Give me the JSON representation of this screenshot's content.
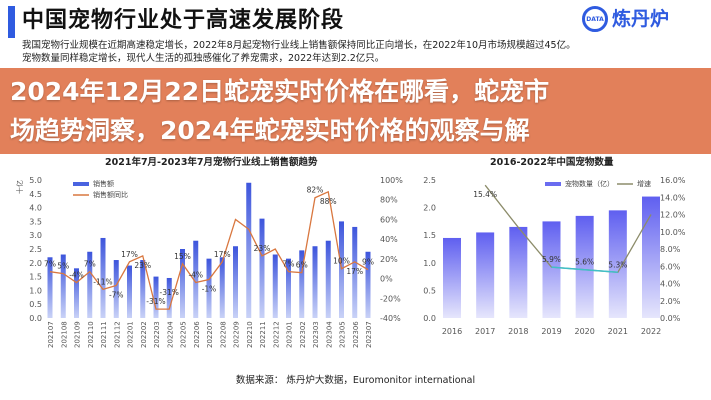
{
  "slide": {
    "title": "中国宠物行业处于高速发展阶段",
    "logo_text": "炼丹炉",
    "logo_mark": "DATA",
    "description": [
      "我国宠物行业规模在近期高速稳定增长，2022年8月起宠物行业线上销售额保持同比正向增长，在2022年10月市场规模超过45亿。",
      "宠物数量同样稳定增长，现代人生活的孤独感催化了养宠需求，2022年达到2.2亿只。"
    ],
    "source": "数据来源： 炼丹炉大数据，Euromonitor international"
  },
  "overlay": {
    "lines": [
      "2024年12月22日蛇宠实时价格在哪看，蛇宠市",
      "场趋势洞察，2024年蛇宠实时价格的观察与解"
    ],
    "color": "#e0764e"
  },
  "chart_data": [
    {
      "type": "bar+line",
      "title": "2021年7月-2023年7月宠物行业线上销售额趋势",
      "ylabel": "十亿",
      "legend": [
        "销售额",
        "销售额同比"
      ],
      "legend_position": "top-left",
      "categories": [
        "202107",
        "202108",
        "202109",
        "202110",
        "202111",
        "202112",
        "202201",
        "202202",
        "202203",
        "202204",
        "202205",
        "202206",
        "202207",
        "202208",
        "202209",
        "202210",
        "202211",
        "202212",
        "202301",
        "202302",
        "202303",
        "202304",
        "202305",
        "202306",
        "202307"
      ],
      "series": [
        {
          "name": "销售额",
          "axis": "left",
          "color": "#4a63e0",
          "values": [
            2.2,
            2.3,
            1.8,
            2.4,
            2.9,
            2.1,
            1.9,
            2.1,
            1.5,
            1.45,
            2.5,
            2.8,
            2.15,
            2.2,
            2.6,
            4.9,
            3.6,
            2.3,
            2.15,
            2.45,
            2.6,
            2.8,
            3.5,
            3.3,
            2.4
          ]
        },
        {
          "name": "销售额同比",
          "axis": "right",
          "color": "#d9773f",
          "values": [
            7,
            5,
            -4,
            7,
            -11,
            -7,
            17,
            23,
            -31,
            -31,
            15,
            -4,
            -1,
            17,
            60,
            50,
            23,
            30,
            7,
            6,
            82,
            88,
            10,
            17,
            9
          ],
          "labels": [
            "7%",
            "5%",
            "-4%",
            "7%",
            "-11%",
            "-7%",
            "17%",
            "23%",
            "-31%",
            "-31%",
            "15%",
            "-4%",
            "-1%",
            "17%",
            "",
            "",
            "23%",
            "",
            "7%",
            "6%",
            "82%",
            "88%",
            "10%",
            "17%",
            "9%"
          ]
        }
      ],
      "ylim": [
        0,
        5
      ],
      "yticks": [
        "0.0",
        "0.5",
        "1.0",
        "1.5",
        "2.0",
        "2.5",
        "3.0",
        "3.5",
        "4.0",
        "4.5",
        "5.0"
      ],
      "y2lim": [
        -40,
        100
      ],
      "y2ticks": [
        "-40%",
        "-20%",
        "0%",
        "20%",
        "40%",
        "60%",
        "80%",
        "100%"
      ]
    },
    {
      "type": "bar+line",
      "title": "2016-2022年中国宠物数量",
      "legend": [
        "宠物数量（亿）",
        "增速"
      ],
      "legend_position": "top-right",
      "categories": [
        "2016",
        "2017",
        "2018",
        "2019",
        "2020",
        "2021",
        "2022"
      ],
      "series": [
        {
          "name": "宠物数量（亿）",
          "axis": "left",
          "color": "#6a6cf0",
          "values": [
            1.45,
            1.55,
            1.65,
            1.75,
            1.85,
            1.95,
            2.2
          ]
        },
        {
          "name": "增速",
          "axis": "right",
          "color": "#8c8c6a",
          "highlight_color": "#40c0c8",
          "values": [
            null,
            15.4,
            10.5,
            5.9,
            5.6,
            5.3,
            12.0
          ],
          "labels": [
            "",
            "15.4%",
            "",
            "5.9%",
            "5.6%",
            "5.3%",
            ""
          ]
        }
      ],
      "ylim": [
        0,
        2.5
      ],
      "yticks": [
        "0.0",
        "0.5",
        "1.0",
        "1.5",
        "2.0",
        "2.5"
      ],
      "y2lim": [
        0,
        16
      ],
      "y2ticks": [
        "0.0%",
        "2.0%",
        "4.0%",
        "6.0%",
        "8.0%",
        "10.0%",
        "12.0%",
        "14.0%",
        "16.0%"
      ]
    }
  ]
}
